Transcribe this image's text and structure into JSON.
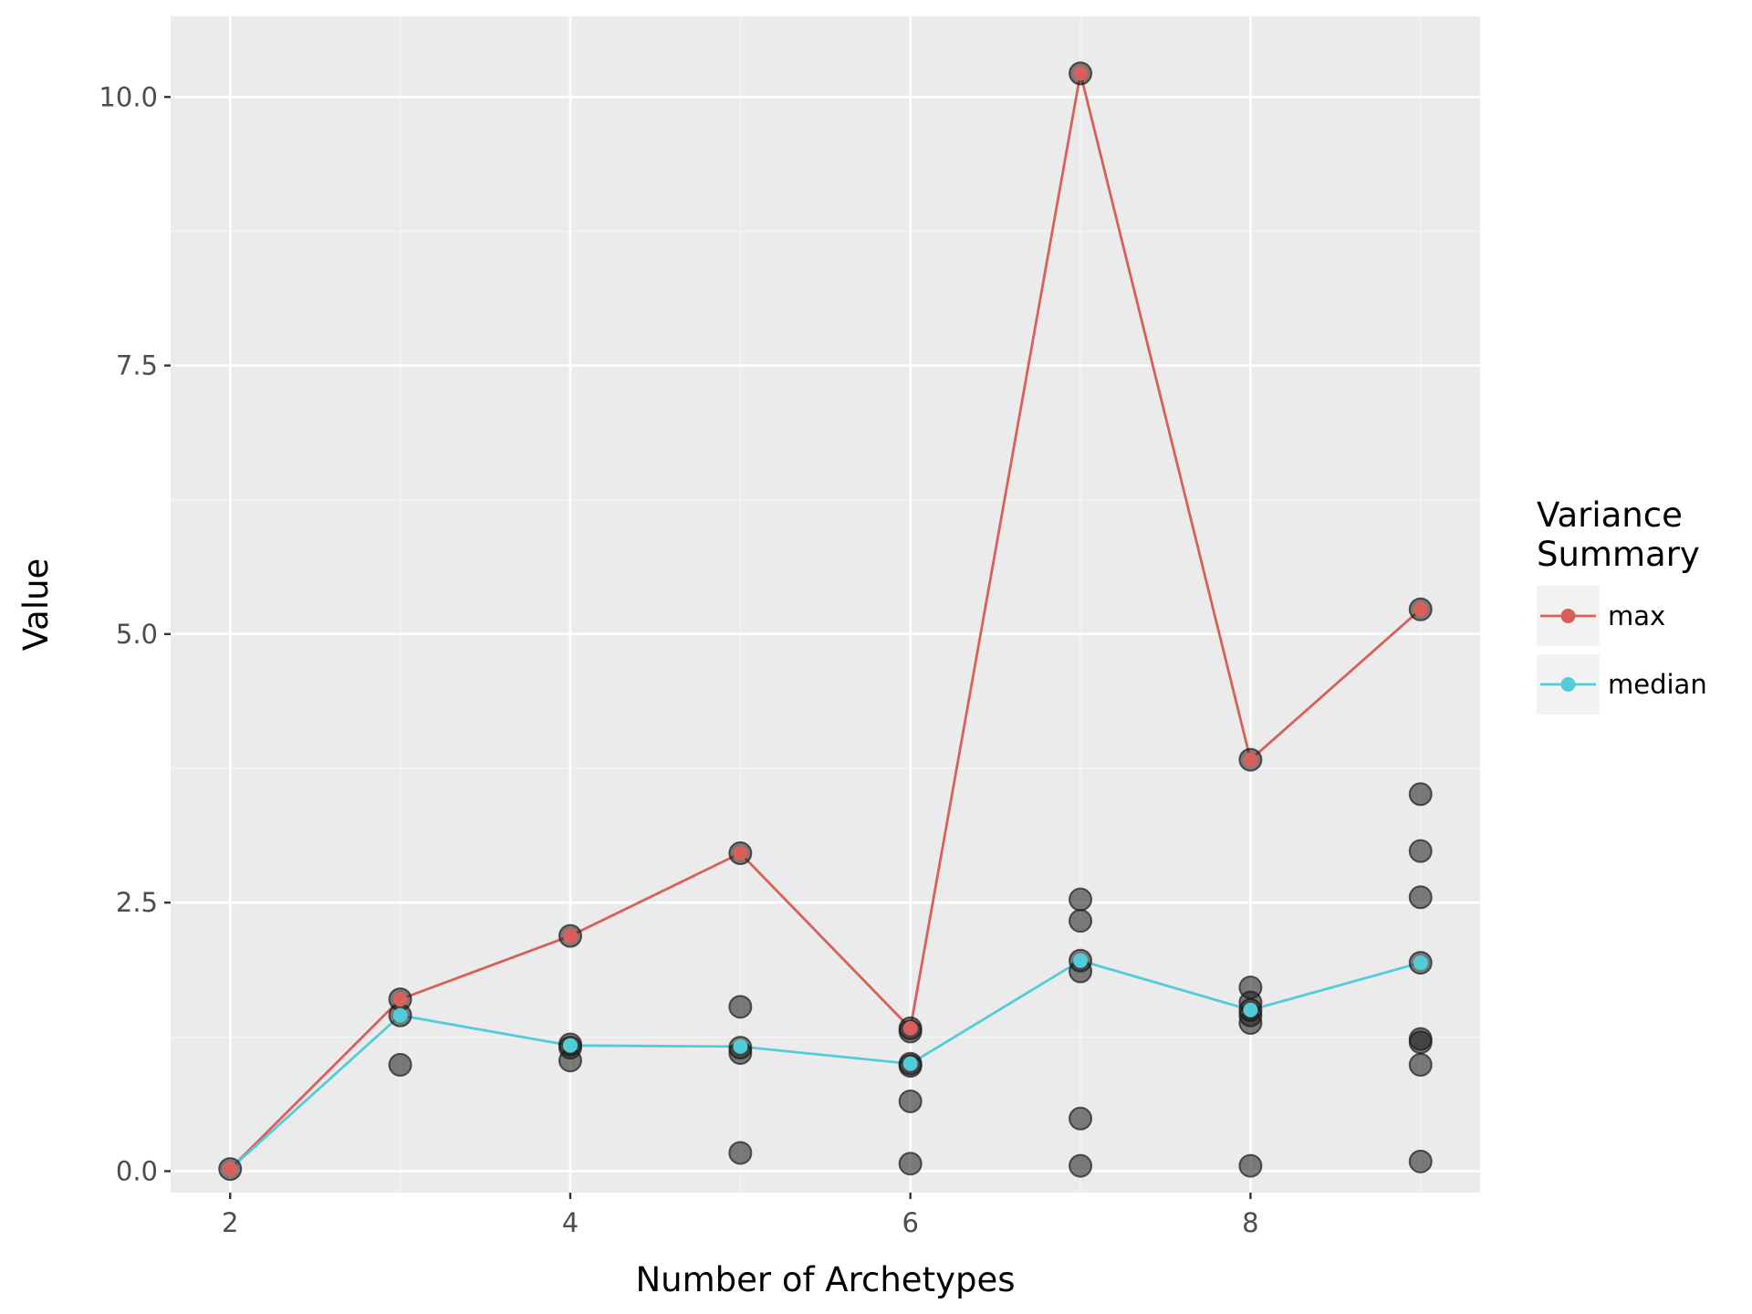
{
  "chart_data": {
    "type": "scatter",
    "title": "",
    "xlabel": "Number of Archetypes",
    "ylabel": "Value",
    "xlim": [
      1.65,
      9.35
    ],
    "ylim": [
      -0.2,
      10.75
    ],
    "x_ticks": [
      2,
      4,
      6,
      8
    ],
    "x_tick_labels": [
      "2",
      "4",
      "6",
      "8"
    ],
    "y_ticks": [
      0,
      2.5,
      5,
      7.5,
      10
    ],
    "y_tick_labels": [
      "0.0",
      "2.5",
      "5.0",
      "7.5",
      "10.0"
    ],
    "grid": true,
    "legend": {
      "title_lines": [
        "Variance",
        "Summary"
      ],
      "placement": "right",
      "entries": [
        {
          "label": "max",
          "color": "#d95f5a"
        },
        {
          "label": "median",
          "color": "#52ccd9"
        }
      ]
    },
    "points": {
      "color": "#1a1a1a",
      "values": [
        [
          2,
          0.02
        ],
        [
          3,
          1.6
        ],
        [
          3,
          1.45
        ],
        [
          3,
          0.99
        ],
        [
          4,
          2.19
        ],
        [
          4,
          1.18
        ],
        [
          4,
          1.15
        ],
        [
          4,
          1.03
        ],
        [
          5,
          2.96
        ],
        [
          5,
          1.53
        ],
        [
          5,
          1.15
        ],
        [
          5,
          1.1
        ],
        [
          5,
          0.17
        ],
        [
          6,
          1.33
        ],
        [
          6,
          1.3
        ],
        [
          6,
          1.0
        ],
        [
          6,
          0.98
        ],
        [
          6,
          0.65
        ],
        [
          6,
          0.07
        ],
        [
          7,
          10.22
        ],
        [
          7,
          2.53
        ],
        [
          7,
          2.33
        ],
        [
          7,
          1.96
        ],
        [
          7,
          1.86
        ],
        [
          7,
          0.49
        ],
        [
          7,
          0.05
        ],
        [
          8,
          3.83
        ],
        [
          8,
          1.71
        ],
        [
          8,
          1.57
        ],
        [
          8,
          1.5
        ],
        [
          8,
          1.45
        ],
        [
          8,
          1.38
        ],
        [
          8,
          0.05
        ],
        [
          9,
          5.23
        ],
        [
          9,
          3.51
        ],
        [
          9,
          2.98
        ],
        [
          9,
          2.55
        ],
        [
          9,
          1.94
        ],
        [
          9,
          1.23
        ],
        [
          9,
          1.2
        ],
        [
          9,
          0.99
        ],
        [
          9,
          0.09
        ]
      ]
    },
    "series": [
      {
        "name": "max",
        "color": "#d95f5a",
        "x": [
          2,
          3,
          4,
          5,
          6,
          7,
          8,
          9
        ],
        "values": [
          0.02,
          1.6,
          2.19,
          2.96,
          1.33,
          10.22,
          3.83,
          5.23
        ]
      },
      {
        "name": "median",
        "color": "#52ccd9",
        "x": [
          2,
          3,
          4,
          5,
          6,
          7,
          8,
          9
        ],
        "values": [
          0.02,
          1.45,
          1.17,
          1.16,
          1.0,
          1.96,
          1.5,
          1.94
        ]
      }
    ],
    "colors": {
      "panel_background": "#ebebeb",
      "grid_major": "#ffffff",
      "grid_minor": "#f5f5f5",
      "legend_key_background": "#f2f2f2"
    }
  }
}
